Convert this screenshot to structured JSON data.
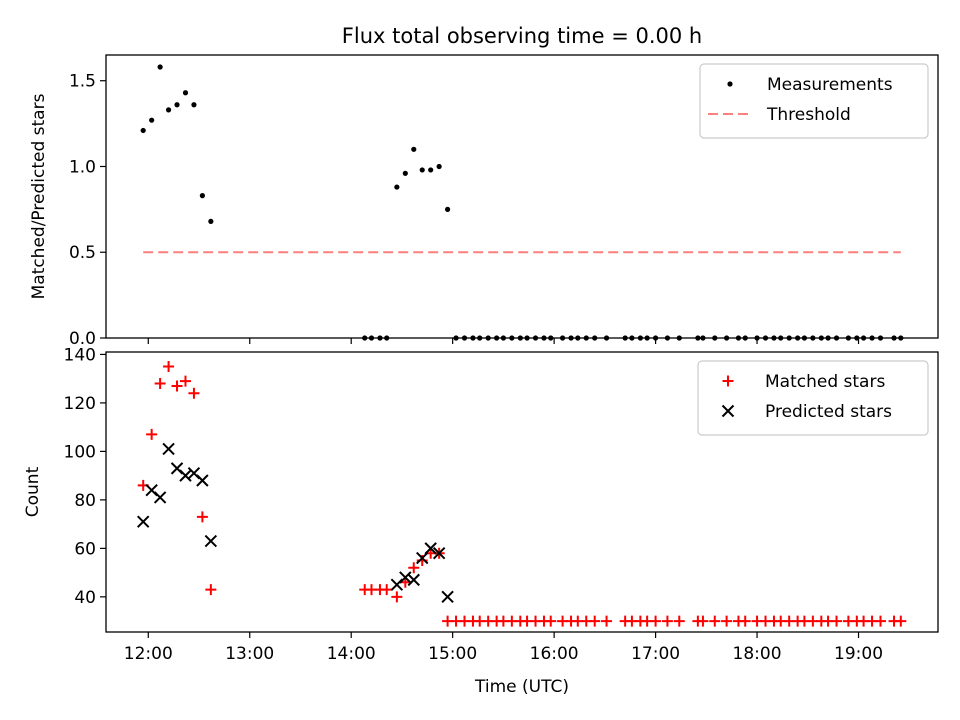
{
  "chart_data": [
    {
      "type": "scatter",
      "title": "Flux total observing time = 0.00 h",
      "xlabel": "",
      "ylabel": "Matched/Predicted stars",
      "xlim": [
        "11:35",
        "19:47"
      ],
      "ylim": [
        0,
        1.65
      ],
      "yticks": [
        0.0,
        0.5,
        1.0,
        1.5
      ],
      "ytick_labels": [
        "0.0",
        "0.5",
        "1.0",
        "1.5"
      ],
      "xticks": [
        "12:00",
        "13:00",
        "14:00",
        "15:00",
        "16:00",
        "17:00",
        "18:00",
        "19:00"
      ],
      "show_xtick_labels": false,
      "grid": false,
      "legend": {
        "placement": "upper right",
        "entries": [
          "Measurements",
          "Threshold"
        ]
      },
      "series": [
        {
          "name": "Measurements",
          "kind": "scatter",
          "marker": "dot",
          "color": "#000000",
          "points": [
            [
              "11:57",
              1.21
            ],
            [
              "12:02",
              1.27
            ],
            [
              "12:07",
              1.58
            ],
            [
              "12:12",
              1.33
            ],
            [
              "12:17",
              1.36
            ],
            [
              "12:22",
              1.43
            ],
            [
              "12:27",
              1.36
            ],
            [
              "12:32",
              0.83
            ],
            [
              "12:37",
              0.68
            ],
            [
              "14:08",
              0
            ],
            [
              "14:12",
              0
            ],
            [
              "14:17",
              0
            ],
            [
              "14:21",
              0
            ],
            [
              "14:27",
              0.88
            ],
            [
              "14:32",
              0.96
            ],
            [
              "14:37",
              1.1
            ],
            [
              "14:42",
              0.98
            ],
            [
              "14:47",
              0.98
            ],
            [
              "14:52",
              1.0
            ],
            [
              "14:57",
              0.75
            ],
            [
              "15:02",
              0
            ],
            [
              "15:07",
              0
            ],
            [
              "15:12",
              0
            ],
            [
              "15:16",
              0
            ],
            [
              "15:21",
              0
            ],
            [
              "15:26",
              0
            ],
            [
              "15:30",
              0
            ],
            [
              "15:35",
              0
            ],
            [
              "15:40",
              0
            ],
            [
              "15:44",
              0
            ],
            [
              "15:49",
              0
            ],
            [
              "15:54",
              0
            ],
            [
              "15:58",
              0
            ],
            [
              "16:05",
              0
            ],
            [
              "16:10",
              0
            ],
            [
              "16:14",
              0
            ],
            [
              "16:19",
              0
            ],
            [
              "16:24",
              0
            ],
            [
              "16:31",
              0
            ],
            [
              "16:42",
              0
            ],
            [
              "16:46",
              0
            ],
            [
              "16:51",
              0
            ],
            [
              "16:55",
              0
            ],
            [
              "17:00",
              0
            ],
            [
              "17:07",
              0
            ],
            [
              "17:14",
              0
            ],
            [
              "17:25",
              0
            ],
            [
              "17:28",
              0
            ],
            [
              "17:35",
              0
            ],
            [
              "17:42",
              0
            ],
            [
              "17:49",
              0
            ],
            [
              "17:53",
              0
            ],
            [
              "18:00",
              0
            ],
            [
              "18:05",
              0
            ],
            [
              "18:10",
              0
            ],
            [
              "18:14",
              0
            ],
            [
              "18:19",
              0
            ],
            [
              "18:24",
              0
            ],
            [
              "18:28",
              0
            ],
            [
              "18:33",
              0
            ],
            [
              "18:38",
              0
            ],
            [
              "18:42",
              0
            ],
            [
              "18:47",
              0
            ],
            [
              "18:54",
              0
            ],
            [
              "18:59",
              0
            ],
            [
              "19:03",
              0
            ],
            [
              "19:08",
              0
            ],
            [
              "19:13",
              0
            ],
            [
              "19:21",
              0
            ],
            [
              "19:25",
              0
            ]
          ]
        },
        {
          "name": "Threshold",
          "kind": "line",
          "style": "dashed",
          "color": "#ff7f7f",
          "points": [
            [
              "11:57",
              0.5
            ],
            [
              "19:25",
              0.5
            ]
          ]
        }
      ]
    },
    {
      "type": "scatter",
      "title": "",
      "xlabel": "Time (UTC)",
      "ylabel": "Count",
      "xlim": [
        "11:35",
        "19:47"
      ],
      "ylim": [
        25.5,
        141
      ],
      "yticks": [
        40,
        60,
        80,
        100,
        120,
        140
      ],
      "ytick_labels": [
        "40",
        "60",
        "80",
        "100",
        "120",
        "140"
      ],
      "xticks": [
        "12:00",
        "13:00",
        "14:00",
        "15:00",
        "16:00",
        "17:00",
        "18:00",
        "19:00"
      ],
      "xtick_labels": [
        "12:00",
        "13:00",
        "14:00",
        "15:00",
        "16:00",
        "17:00",
        "18:00",
        "19:00"
      ],
      "grid": false,
      "legend": {
        "placement": "upper right",
        "entries": [
          "Matched stars",
          "Predicted stars"
        ]
      },
      "series": [
        {
          "name": "Matched stars",
          "kind": "scatter",
          "marker": "plus",
          "color": "#ff0000",
          "points": [
            [
              "11:57",
              86
            ],
            [
              "12:02",
              107
            ],
            [
              "12:07",
              128
            ],
            [
              "12:12",
              135
            ],
            [
              "12:17",
              127
            ],
            [
              "12:22",
              129
            ],
            [
              "12:27",
              124
            ],
            [
              "12:32",
              73
            ],
            [
              "12:37",
              43
            ],
            [
              "14:08",
              43
            ],
            [
              "14:12",
              43
            ],
            [
              "14:17",
              43
            ],
            [
              "14:21",
              43
            ],
            [
              "14:27",
              40
            ],
            [
              "14:32",
              46
            ],
            [
              "14:37",
              52
            ],
            [
              "14:42",
              55
            ],
            [
              "14:47",
              58
            ],
            [
              "14:52",
              58
            ],
            [
              "14:57",
              30
            ],
            [
              "15:02",
              30
            ],
            [
              "15:07",
              30
            ],
            [
              "15:12",
              30
            ],
            [
              "15:16",
              30
            ],
            [
              "15:21",
              30
            ],
            [
              "15:26",
              30
            ],
            [
              "15:30",
              30
            ],
            [
              "15:35",
              30
            ],
            [
              "15:40",
              30
            ],
            [
              "15:44",
              30
            ],
            [
              "15:49",
              30
            ],
            [
              "15:54",
              30
            ],
            [
              "15:58",
              30
            ],
            [
              "16:05",
              30
            ],
            [
              "16:10",
              30
            ],
            [
              "16:14",
              30
            ],
            [
              "16:19",
              30
            ],
            [
              "16:24",
              30
            ],
            [
              "16:31",
              30
            ],
            [
              "16:42",
              30
            ],
            [
              "16:46",
              30
            ],
            [
              "16:51",
              30
            ],
            [
              "16:55",
              30
            ],
            [
              "17:00",
              30
            ],
            [
              "17:07",
              30
            ],
            [
              "17:14",
              30
            ],
            [
              "17:25",
              30
            ],
            [
              "17:28",
              30
            ],
            [
              "17:35",
              30
            ],
            [
              "17:42",
              30
            ],
            [
              "17:49",
              30
            ],
            [
              "17:53",
              30
            ],
            [
              "18:00",
              30
            ],
            [
              "18:05",
              30
            ],
            [
              "18:10",
              30
            ],
            [
              "18:14",
              30
            ],
            [
              "18:19",
              30
            ],
            [
              "18:24",
              30
            ],
            [
              "18:28",
              30
            ],
            [
              "18:33",
              30
            ],
            [
              "18:38",
              30
            ],
            [
              "18:42",
              30
            ],
            [
              "18:47",
              30
            ],
            [
              "18:54",
              30
            ],
            [
              "18:59",
              30
            ],
            [
              "19:03",
              30
            ],
            [
              "19:08",
              30
            ],
            [
              "19:13",
              30
            ],
            [
              "19:21",
              30
            ],
            [
              "19:25",
              30
            ]
          ]
        },
        {
          "name": "Predicted stars",
          "kind": "scatter",
          "marker": "x",
          "color": "#000000",
          "points": [
            [
              "11:57",
              71
            ],
            [
              "12:02",
              84
            ],
            [
              "12:07",
              81
            ],
            [
              "12:12",
              101
            ],
            [
              "12:17",
              93
            ],
            [
              "12:22",
              90
            ],
            [
              "12:27",
              91
            ],
            [
              "12:32",
              88
            ],
            [
              "12:37",
              63
            ],
            [
              "14:27",
              45
            ],
            [
              "14:32",
              48
            ],
            [
              "14:37",
              47
            ],
            [
              "14:42",
              56
            ],
            [
              "14:47",
              60
            ],
            [
              "14:52",
              58
            ],
            [
              "14:57",
              40
            ]
          ]
        }
      ]
    }
  ]
}
